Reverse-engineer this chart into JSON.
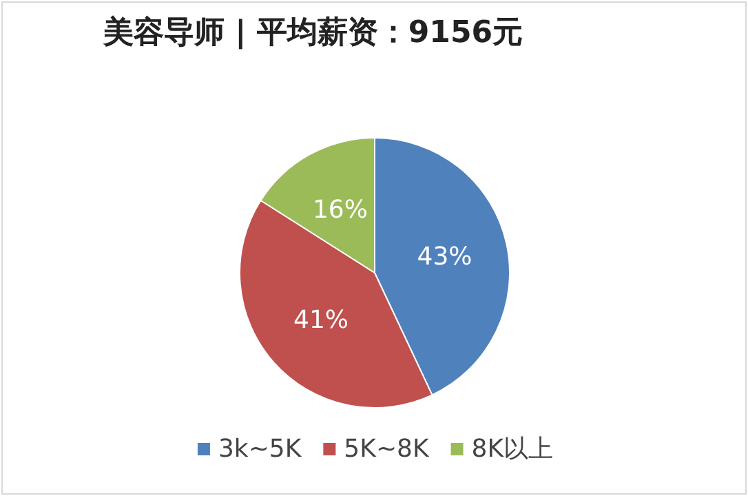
{
  "chart_data": {
    "type": "pie",
    "title": "美容导师 | 平均薪资：9156元",
    "categories": [
      "3k~5K",
      "5K~8K",
      "8K以上"
    ],
    "values": [
      43,
      41,
      16
    ],
    "colors": [
      "#4f81bd",
      "#c0504d",
      "#9bbb59"
    ],
    "value_labels": [
      "43%",
      "41%",
      "16%"
    ],
    "legend": "bottom"
  }
}
